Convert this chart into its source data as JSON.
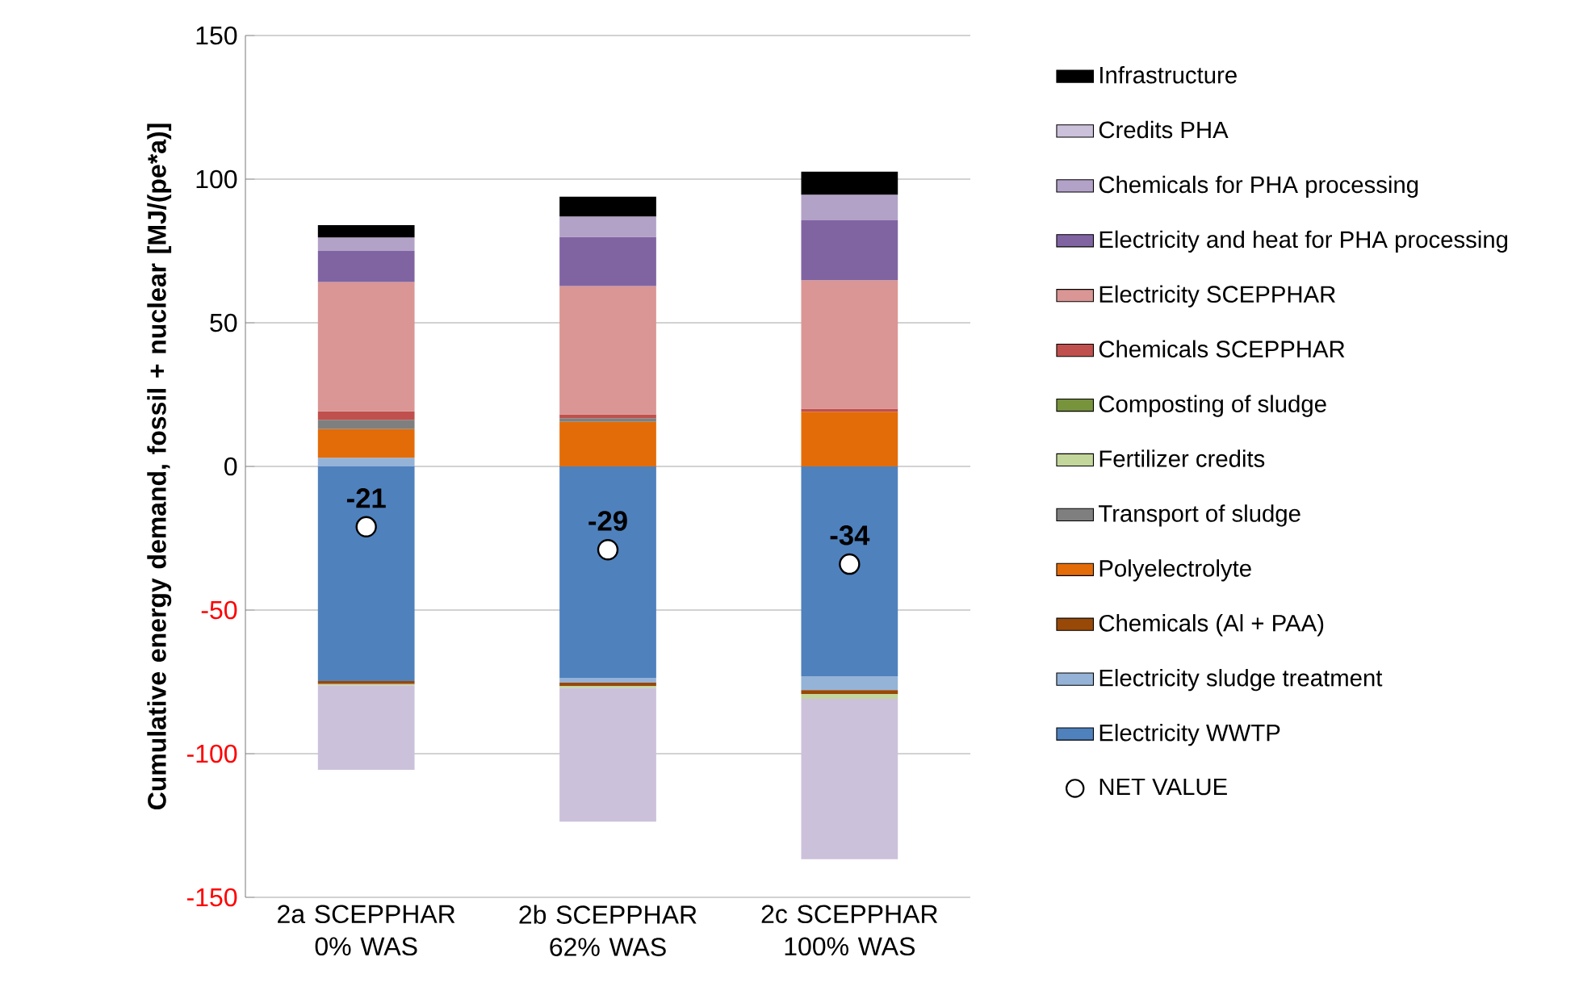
{
  "chart_data": {
    "type": "bar",
    "stacked": true,
    "ylabel": "Cumulative energy demand, fossil + nuclear [MJ/(pe*a)]",
    "categories": [
      "2a SCEPPHAR 0% WAS",
      "2b SCEPPHAR 62% WAS",
      "2c SCEPPHAR 100% WAS"
    ],
    "ylim": [
      -150,
      150
    ],
    "yticks": [
      -150,
      -100,
      -50,
      0,
      50,
      100,
      150
    ],
    "grid": "y",
    "legend": "right",
    "series": [
      {
        "name": "Electricity WWTP",
        "color": "#4f81bd",
        "values": [
          -74.7,
          -73.6,
          -73.0
        ]
      },
      {
        "name": "Electricity sludge treatment",
        "color": "#95b3d7",
        "values": [
          3.0,
          -1.7,
          -4.9
        ]
      },
      {
        "name": "Chemicals (Al + PAA)",
        "color": "#984807",
        "values": [
          -1.1,
          -1.1,
          -1.3
        ]
      },
      {
        "name": "Polyelectrolyte",
        "color": "#e36c09",
        "values": [
          10.0,
          15.5,
          19.0
        ]
      },
      {
        "name": "Transport of sludge",
        "color": "#7f7f7f",
        "values": [
          3.2,
          1.3,
          0
        ]
      },
      {
        "name": "Fertilizer credits",
        "color": "#c3d69b",
        "values": [
          -0.4,
          -0.7,
          -1.7
        ]
      },
      {
        "name": "Composting of sludge",
        "color": "#77933c",
        "values": [
          0,
          0,
          0
        ]
      },
      {
        "name": "Chemicals SCEPPHAR",
        "color": "#c0504d",
        "values": [
          3.0,
          1.3,
          1.1
        ]
      },
      {
        "name": "Electricity SCEPPHAR",
        "color": "#da9694",
        "values": [
          45.0,
          44.7,
          44.7
        ]
      },
      {
        "name": "Electricity and heat for PHA processing",
        "color": "#8064a2",
        "values": [
          10.8,
          17.1,
          20.9
        ]
      },
      {
        "name": "Chemicals for PHA processing",
        "color": "#b3a2c7",
        "values": [
          4.7,
          7.1,
          8.9
        ]
      },
      {
        "name": "Credits PHA",
        "color": "#ccc1da",
        "values": [
          -29.4,
          -46.6,
          -55.8
        ]
      },
      {
        "name": "Infrastructure",
        "color": "#000000",
        "values": [
          4.3,
          6.9,
          8.0
        ]
      },
      {
        "name": "NET VALUE",
        "type": "scatter",
        "marker": "circle",
        "color": "#ffffff",
        "values": [
          -21,
          -29,
          -34
        ],
        "value_labels": [
          "-21",
          "-29",
          "-34"
        ]
      }
    ]
  }
}
